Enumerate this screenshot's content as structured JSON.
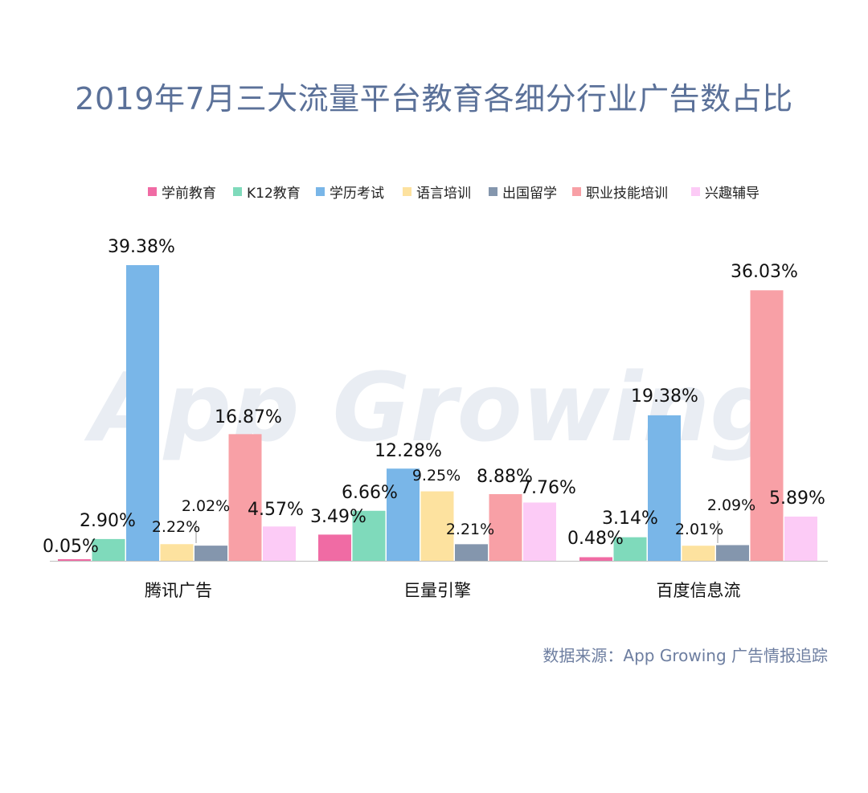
{
  "chart_data": {
    "type": "bar",
    "title": "2019年7月三大流量平台教育各细分行业广告数占比",
    "categories": [
      "腾讯广告",
      "巨量引擎",
      "百度信息流"
    ],
    "series": [
      {
        "name": "学前教育",
        "color": "#f06ba4",
        "values": [
          0.05,
          3.49,
          0.48
        ],
        "labels": [
          "0.05%",
          "3.49%",
          "0.48%"
        ]
      },
      {
        "name": "K12教育",
        "color": "#7fdabb",
        "values": [
          2.9,
          6.66,
          3.14
        ],
        "labels": [
          "2.90%",
          "6.66%",
          "3.14%"
        ]
      },
      {
        "name": "学历考试",
        "color": "#79b6e8",
        "values": [
          39.38,
          12.28,
          19.38
        ],
        "labels": [
          "39.38%",
          "12.28%",
          "19.38%"
        ]
      },
      {
        "name": "语言培训",
        "color": "#fde29f",
        "values": [
          2.22,
          9.25,
          2.01
        ],
        "labels": [
          "2.22%",
          "9.25%",
          "2.01%"
        ]
      },
      {
        "name": "出国留学",
        "color": "#8496ad",
        "values": [
          2.02,
          2.21,
          2.09
        ],
        "labels": [
          "2.02%",
          "2.21%",
          "2.09%"
        ]
      },
      {
        "name": "职业技能培训",
        "color": "#f8a0a6",
        "values": [
          16.87,
          8.88,
          36.03
        ],
        "labels": [
          "16.87%",
          "8.88%",
          "36.03%"
        ]
      },
      {
        "name": "兴趣辅导",
        "color": "#fccbf6",
        "values": [
          4.57,
          7.76,
          5.89
        ],
        "labels": [
          "4.57%",
          "7.76%",
          "5.89%"
        ]
      }
    ],
    "ylim": [
      0,
      40
    ],
    "grid": false,
    "legend": "top-center",
    "watermark": "App Growing"
  },
  "source_text": "数据来源：App Growing 广告情报追踪"
}
